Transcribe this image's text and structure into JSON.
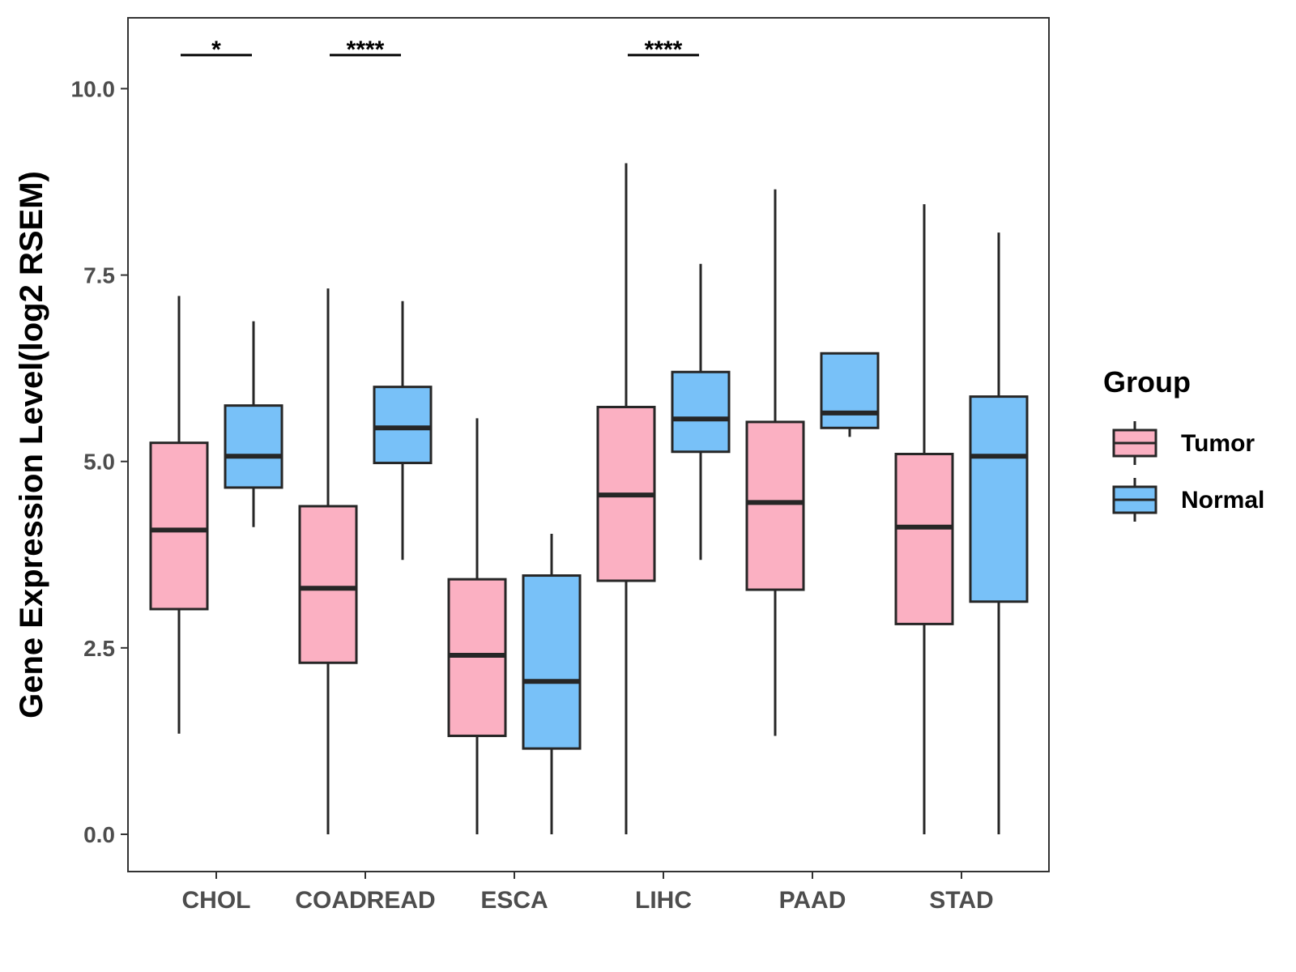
{
  "chart_data": {
    "type": "boxplot",
    "title": "",
    "xlabel": "",
    "ylabel": "Gene Expression Level(log2 RSEM)",
    "ylim": [
      -0.5,
      10.95
    ],
    "yticks": [
      0.0,
      2.5,
      5.0,
      7.5,
      10.0
    ],
    "ytick_labels": [
      "0.0",
      "2.5",
      "5.0",
      "7.5",
      "10.0"
    ],
    "categories": [
      "CHOL",
      "COADREAD",
      "ESCA",
      "LIHC",
      "PAAD",
      "STAD"
    ],
    "series": [
      {
        "name": "Tumor",
        "color": "#fbb0c2",
        "boxes": [
          {
            "min": 1.35,
            "q1": 3.02,
            "median": 4.08,
            "q3": 5.25,
            "max": 7.22
          },
          {
            "min": 0.0,
            "q1": 2.3,
            "median": 3.3,
            "q3": 4.4,
            "max": 7.32
          },
          {
            "min": 0.0,
            "q1": 1.32,
            "median": 2.4,
            "q3": 3.42,
            "max": 5.58
          },
          {
            "min": 0.0,
            "q1": 3.4,
            "median": 4.55,
            "q3": 5.73,
            "max": 9.0
          },
          {
            "min": 1.32,
            "q1": 3.28,
            "median": 4.45,
            "q3": 5.53,
            "max": 8.65
          },
          {
            "min": 0.0,
            "q1": 2.82,
            "median": 4.12,
            "q3": 5.1,
            "max": 8.45
          }
        ]
      },
      {
        "name": "Normal",
        "color": "#78c1f8",
        "boxes": [
          {
            "min": 4.12,
            "q1": 4.65,
            "median": 5.07,
            "q3": 5.75,
            "max": 6.88
          },
          {
            "min": 3.68,
            "q1": 4.98,
            "median": 5.45,
            "q3": 6.0,
            "max": 7.15
          },
          {
            "min": 0.0,
            "q1": 1.15,
            "median": 2.05,
            "q3": 3.47,
            "max": 4.03
          },
          {
            "min": 3.68,
            "q1": 5.13,
            "median": 5.57,
            "q3": 6.2,
            "max": 7.65
          },
          {
            "min": 5.33,
            "q1": 5.45,
            "median": 5.65,
            "q3": 6.45,
            "max": 6.45
          },
          {
            "min": 0.0,
            "q1": 3.12,
            "median": 5.07,
            "q3": 5.87,
            "max": 8.07
          }
        ]
      }
    ],
    "significance": [
      {
        "category": "CHOL",
        "label": "*",
        "y": 10.45
      },
      {
        "category": "COADREAD",
        "label": "****",
        "y": 10.45
      },
      {
        "category": "LIHC",
        "label": "****",
        "y": 10.45
      }
    ],
    "legend": {
      "title": "Group",
      "position": "right",
      "items": [
        "Tumor",
        "Normal"
      ]
    }
  }
}
